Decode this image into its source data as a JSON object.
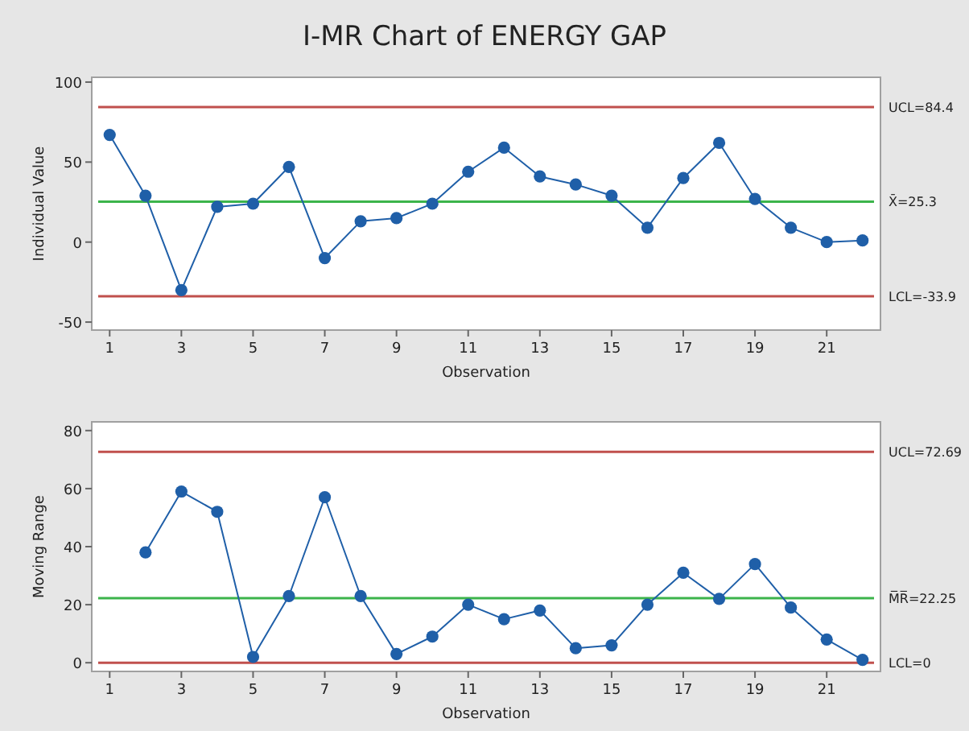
{
  "chart_data": [
    {
      "type": "line",
      "title": "I-MR Chart of ENERGY GAP",
      "xlabel": "Observation",
      "ylabel": "Individual Value",
      "x": [
        1,
        2,
        3,
        4,
        5,
        6,
        7,
        8,
        9,
        10,
        11,
        12,
        13,
        14,
        15,
        16,
        17,
        18,
        19,
        20,
        21,
        22
      ],
      "series": [
        {
          "color": "#1f5fa8",
          "values": [
            67,
            29,
            -30,
            22,
            24,
            47,
            -10,
            13,
            15,
            24,
            44,
            59,
            41,
            36,
            29,
            9,
            40,
            62,
            27,
            9,
            0,
            1
          ]
        }
      ],
      "xlim": [
        0.5,
        22.5
      ],
      "xticks": [
        1,
        3,
        5,
        7,
        9,
        11,
        13,
        15,
        17,
        19,
        21
      ],
      "ylim": [
        -55,
        103
      ],
      "yticks": [
        -50,
        0,
        50,
        100
      ],
      "marker": "circle",
      "line_style": "solid",
      "ref_lines": [
        {
          "axis": "y",
          "value": 84.4,
          "label": "UCL=84.4",
          "color": "#c0504d"
        },
        {
          "axis": "y",
          "value": 25.3,
          "label": "X̄=25.3",
          "color": "#3cb44b"
        },
        {
          "axis": "y",
          "value": -33.9,
          "label": "LCL=-33.9",
          "color": "#c0504d"
        }
      ]
    },
    {
      "type": "line",
      "xlabel": "Observation",
      "ylabel": "Moving Range",
      "x": [
        2,
        3,
        4,
        5,
        6,
        7,
        8,
        9,
        10,
        11,
        12,
        13,
        14,
        15,
        16,
        17,
        18,
        19,
        20,
        21,
        22
      ],
      "series": [
        {
          "color": "#1f5fa8",
          "values": [
            38,
            59,
            52,
            2,
            23,
            57,
            23,
            3,
            9,
            20,
            15,
            18,
            5,
            6,
            20,
            31,
            22,
            34,
            19,
            8,
            1
          ]
        }
      ],
      "xlim": [
        0.5,
        22.5
      ],
      "xticks": [
        1,
        3,
        5,
        7,
        9,
        11,
        13,
        15,
        17,
        19,
        21
      ],
      "ylim": [
        -3,
        83
      ],
      "yticks": [
        0,
        20,
        40,
        60,
        80
      ],
      "marker": "circle",
      "line_style": "solid",
      "ref_lines": [
        {
          "axis": "y",
          "value": 72.69,
          "label": "UCL=72.69",
          "color": "#c0504d"
        },
        {
          "axis": "y",
          "value": 22.25,
          "label": "M̅R̅=22.25",
          "color": "#3cb44b"
        },
        {
          "axis": "y",
          "value": 0,
          "label": "LCL=0",
          "color": "#c0504d"
        }
      ]
    }
  ]
}
